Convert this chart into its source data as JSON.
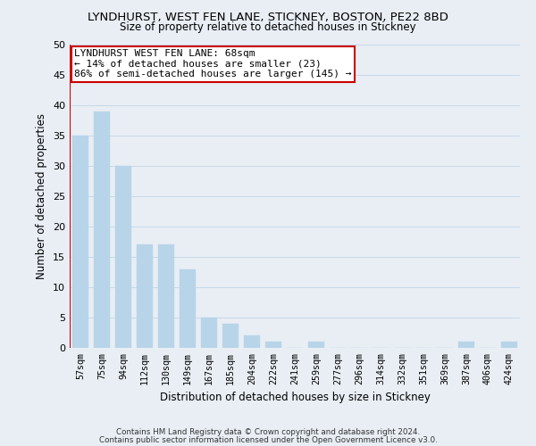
{
  "title": "LYNDHURST, WEST FEN LANE, STICKNEY, BOSTON, PE22 8BD",
  "subtitle": "Size of property relative to detached houses in Stickney",
  "xlabel": "Distribution of detached houses by size in Stickney",
  "ylabel": "Number of detached properties",
  "bar_color": "#b8d4e8",
  "grid_color": "#c8d8e8",
  "background_color": "#e8eef4",
  "bins": [
    "57sqm",
    "75sqm",
    "94sqm",
    "112sqm",
    "130sqm",
    "149sqm",
    "167sqm",
    "185sqm",
    "204sqm",
    "222sqm",
    "241sqm",
    "259sqm",
    "277sqm",
    "296sqm",
    "314sqm",
    "332sqm",
    "351sqm",
    "369sqm",
    "387sqm",
    "406sqm",
    "424sqm"
  ],
  "values": [
    35,
    39,
    30,
    17,
    17,
    13,
    5,
    4,
    2,
    1,
    0,
    1,
    0,
    0,
    0,
    0,
    0,
    0,
    1,
    0,
    1
  ],
  "ylim": [
    0,
    50
  ],
  "yticks": [
    0,
    5,
    10,
    15,
    20,
    25,
    30,
    35,
    40,
    45,
    50
  ],
  "property_line_color": "#cc0000",
  "annotation_title": "LYNDHURST WEST FEN LANE: 68sqm",
  "annotation_line1": "← 14% of detached houses are smaller (23)",
  "annotation_line2": "86% of semi-detached houses are larger (145) →",
  "annotation_box_color": "#ffffff",
  "annotation_box_edge": "#cc0000",
  "footer1": "Contains HM Land Registry data © Crown copyright and database right 2024.",
  "footer2": "Contains public sector information licensed under the Open Government Licence v3.0."
}
